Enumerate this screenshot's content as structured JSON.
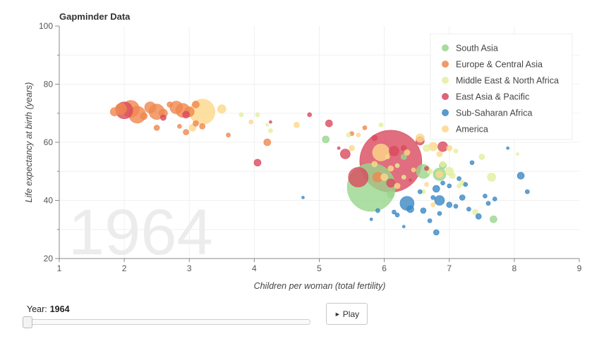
{
  "chart_data": {
    "type": "scatter",
    "title": "Gapminder Data",
    "xlabel": "Children per woman (total fertility)",
    "ylabel": "Life expectancy at birth (years)",
    "xlim": [
      1,
      9
    ],
    "ylim": [
      20,
      100
    ],
    "xticks": [
      "1",
      "2",
      "3",
      "4",
      "5",
      "6",
      "7",
      "8",
      "9"
    ],
    "yticks": [
      "20",
      "40",
      "60",
      "80",
      "100"
    ],
    "grid": true,
    "legend_position": "top-right",
    "year_label": "1964",
    "series": [
      {
        "name": "South Asia",
        "color": "#98d68c",
        "points": [
          {
            "x": 5.8,
            "y": 44.5,
            "r": 34
          },
          {
            "x": 6.6,
            "y": 50.0,
            "r": 10
          },
          {
            "x": 6.85,
            "y": 49.0,
            "r": 9
          },
          {
            "x": 5.1,
            "y": 61.0,
            "r": 5
          },
          {
            "x": 7.68,
            "y": 33.5,
            "r": 5
          },
          {
            "x": 6.3,
            "y": 55.0,
            "r": 4
          },
          {
            "x": 6.9,
            "y": 52.0,
            "r": 5
          },
          {
            "x": 6.1,
            "y": 42.0,
            "r": 5
          }
        ]
      },
      {
        "name": "Europe & Central Asia",
        "color": "#f0874f",
        "points": [
          {
            "x": 2.1,
            "y": 71.5,
            "r": 12
          },
          {
            "x": 2.2,
            "y": 69.5,
            "r": 12
          },
          {
            "x": 2.5,
            "y": 70.5,
            "r": 11
          },
          {
            "x": 2.9,
            "y": 71.0,
            "r": 10
          },
          {
            "x": 2.8,
            "y": 72.0,
            "r": 9
          },
          {
            "x": 1.95,
            "y": 71.5,
            "r": 8
          },
          {
            "x": 2.4,
            "y": 72.0,
            "r": 8
          },
          {
            "x": 3.0,
            "y": 70.5,
            "r": 7
          },
          {
            "x": 2.6,
            "y": 70.0,
            "r": 6
          },
          {
            "x": 1.85,
            "y": 70.5,
            "r": 6
          },
          {
            "x": 3.1,
            "y": 73.0,
            "r": 5
          },
          {
            "x": 2.3,
            "y": 69.0,
            "r": 5
          },
          {
            "x": 2.7,
            "y": 73.0,
            "r": 4
          },
          {
            "x": 4.2,
            "y": 60.0,
            "r": 5
          },
          {
            "x": 5.9,
            "y": 48.0,
            "r": 7
          },
          {
            "x": 2.5,
            "y": 65.0,
            "r": 4
          },
          {
            "x": 2.95,
            "y": 63.5,
            "r": 4
          },
          {
            "x": 3.2,
            "y": 65.5,
            "r": 4
          },
          {
            "x": 3.6,
            "y": 62.5,
            "r": 3
          },
          {
            "x": 2.85,
            "y": 65.5,
            "r": 3
          },
          {
            "x": 3.1,
            "y": 66.5,
            "r": 4
          },
          {
            "x": 5.5,
            "y": 63.0,
            "r": 3
          },
          {
            "x": 5.7,
            "y": 65.0,
            "r": 3
          }
        ]
      },
      {
        "name": "Middle East & North Africa",
        "color": "#e4ef9c",
        "points": [
          {
            "x": 7.0,
            "y": 50.0,
            "r": 6
          },
          {
            "x": 7.65,
            "y": 48.0,
            "r": 6
          },
          {
            "x": 7.05,
            "y": 48.5,
            "r": 4
          },
          {
            "x": 6.65,
            "y": 58.0,
            "r": 5
          },
          {
            "x": 7.2,
            "y": 46.0,
            "r": 4
          },
          {
            "x": 6.9,
            "y": 52.5,
            "r": 4
          },
          {
            "x": 7.5,
            "y": 55.0,
            "r": 4
          },
          {
            "x": 6.7,
            "y": 50.0,
            "r": 4
          },
          {
            "x": 7.1,
            "y": 57.0,
            "r": 3
          },
          {
            "x": 6.2,
            "y": 52.0,
            "r": 3
          },
          {
            "x": 6.3,
            "y": 48.0,
            "r": 3
          },
          {
            "x": 7.15,
            "y": 45.0,
            "r": 3
          },
          {
            "x": 7.4,
            "y": 36.0,
            "r": 4
          },
          {
            "x": 5.95,
            "y": 66.0,
            "r": 3
          },
          {
            "x": 5.45,
            "y": 62.5,
            "r": 3
          },
          {
            "x": 4.05,
            "y": 69.5,
            "r": 3
          },
          {
            "x": 3.8,
            "y": 69.5,
            "r": 3
          },
          {
            "x": 4.2,
            "y": 66.0,
            "r": 2
          },
          {
            "x": 4.25,
            "y": 64.0,
            "r": 3
          },
          {
            "x": 6.6,
            "y": 43.0,
            "r": 3
          },
          {
            "x": 8.05,
            "y": 56.0,
            "r": 2
          }
        ]
      },
      {
        "name": "East Asia & Pacific",
        "color": "#d94a5e",
        "points": [
          {
            "x": 6.1,
            "y": 53.5,
            "r": 44
          },
          {
            "x": 5.6,
            "y": 48.0,
            "r": 14
          },
          {
            "x": 2.0,
            "y": 71.0,
            "r": 12
          },
          {
            "x": 2.95,
            "y": 69.5,
            "r": 5
          },
          {
            "x": 5.4,
            "y": 56.0,
            "r": 7
          },
          {
            "x": 4.05,
            "y": 53.0,
            "r": 5
          },
          {
            "x": 5.15,
            "y": 66.5,
            "r": 5
          },
          {
            "x": 6.1,
            "y": 46.0,
            "r": 6
          },
          {
            "x": 6.15,
            "y": 57.0,
            "r": 7
          },
          {
            "x": 6.9,
            "y": 58.5,
            "r": 7
          },
          {
            "x": 5.85,
            "y": 61.5,
            "r": 4
          },
          {
            "x": 6.55,
            "y": 60.5,
            "r": 6
          },
          {
            "x": 4.85,
            "y": 69.5,
            "r": 3
          },
          {
            "x": 2.6,
            "y": 68.5,
            "r": 4
          },
          {
            "x": 6.3,
            "y": 58.0,
            "r": 4
          },
          {
            "x": 6.65,
            "y": 51.0,
            "r": 3
          },
          {
            "x": 4.25,
            "y": 67.0,
            "r": 2
          },
          {
            "x": 5.3,
            "y": 58.0,
            "r": 2
          },
          {
            "x": 6.4,
            "y": 47.0,
            "r": 2
          }
        ]
      },
      {
        "name": "Sub-Saharan Africa",
        "color": "#3b88c4",
        "points": [
          {
            "x": 6.35,
            "y": 39.0,
            "r": 10
          },
          {
            "x": 6.85,
            "y": 40.0,
            "r": 7
          },
          {
            "x": 6.8,
            "y": 44.0,
            "r": 5
          },
          {
            "x": 6.4,
            "y": 37.0,
            "r": 5
          },
          {
            "x": 6.6,
            "y": 36.5,
            "r": 4
          },
          {
            "x": 7.0,
            "y": 38.5,
            "r": 4
          },
          {
            "x": 7.2,
            "y": 41.0,
            "r": 4
          },
          {
            "x": 8.1,
            "y": 48.5,
            "r": 5
          },
          {
            "x": 6.8,
            "y": 29.0,
            "r": 4
          },
          {
            "x": 7.45,
            "y": 34.5,
            "r": 4
          },
          {
            "x": 7.1,
            "y": 38.0,
            "r": 3
          },
          {
            "x": 7.25,
            "y": 45.5,
            "r": 3
          },
          {
            "x": 6.9,
            "y": 46.0,
            "r": 3
          },
          {
            "x": 6.75,
            "y": 41.0,
            "r": 3
          },
          {
            "x": 7.55,
            "y": 41.5,
            "r": 3
          },
          {
            "x": 7.0,
            "y": 45.0,
            "r": 3
          },
          {
            "x": 7.6,
            "y": 39.0,
            "r": 3
          },
          {
            "x": 7.3,
            "y": 37.0,
            "r": 3
          },
          {
            "x": 6.55,
            "y": 43.0,
            "r": 3
          },
          {
            "x": 6.2,
            "y": 35.0,
            "r": 3
          },
          {
            "x": 6.7,
            "y": 33.0,
            "r": 3
          },
          {
            "x": 6.3,
            "y": 31.0,
            "r": 2
          },
          {
            "x": 7.7,
            "y": 40.5,
            "r": 3
          },
          {
            "x": 8.2,
            "y": 43.0,
            "r": 3
          },
          {
            "x": 7.9,
            "y": 58.0,
            "r": 2
          },
          {
            "x": 5.9,
            "y": 36.5,
            "r": 3
          },
          {
            "x": 5.8,
            "y": 33.5,
            "r": 2
          },
          {
            "x": 4.75,
            "y": 41.0,
            "r": 2
          },
          {
            "x": 6.15,
            "y": 36.0,
            "r": 3
          },
          {
            "x": 6.85,
            "y": 35.5,
            "r": 3
          },
          {
            "x": 7.35,
            "y": 53.0,
            "r": 3
          },
          {
            "x": 7.15,
            "y": 47.5,
            "r": 3
          }
        ]
      },
      {
        "name": "America",
        "color": "#fcd88a",
        "points": [
          {
            "x": 3.2,
            "y": 70.5,
            "r": 18
          },
          {
            "x": 5.95,
            "y": 56.5,
            "r": 12
          },
          {
            "x": 3.5,
            "y": 71.5,
            "r": 6
          },
          {
            "x": 6.75,
            "y": 58.5,
            "r": 6
          },
          {
            "x": 6.55,
            "y": 61.5,
            "r": 6
          },
          {
            "x": 6.85,
            "y": 49.0,
            "r": 5
          },
          {
            "x": 6.0,
            "y": 48.0,
            "r": 5
          },
          {
            "x": 6.85,
            "y": 56.0,
            "r": 4
          },
          {
            "x": 6.35,
            "y": 56.5,
            "r": 4
          },
          {
            "x": 7.0,
            "y": 58.0,
            "r": 4
          },
          {
            "x": 4.65,
            "y": 66.0,
            "r": 4
          },
          {
            "x": 3.05,
            "y": 65.0,
            "r": 5
          },
          {
            "x": 5.85,
            "y": 52.5,
            "r": 4
          },
          {
            "x": 6.1,
            "y": 51.0,
            "r": 4
          },
          {
            "x": 6.2,
            "y": 45.0,
            "r": 4
          },
          {
            "x": 5.5,
            "y": 58.0,
            "r": 4
          },
          {
            "x": 6.45,
            "y": 50.5,
            "r": 3
          },
          {
            "x": 6.65,
            "y": 45.5,
            "r": 3
          },
          {
            "x": 6.75,
            "y": 38.5,
            "r": 3
          },
          {
            "x": 3.95,
            "y": 67.0,
            "r": 3
          },
          {
            "x": 5.6,
            "y": 62.5,
            "r": 3
          },
          {
            "x": 6.05,
            "y": 55.0,
            "r": 3
          }
        ]
      }
    ]
  },
  "controls": {
    "year_caption": "Year:",
    "year_value": "1964",
    "slider_fraction": 0.0,
    "play_icon": "play-triangle-icon",
    "play_label": "Play"
  }
}
